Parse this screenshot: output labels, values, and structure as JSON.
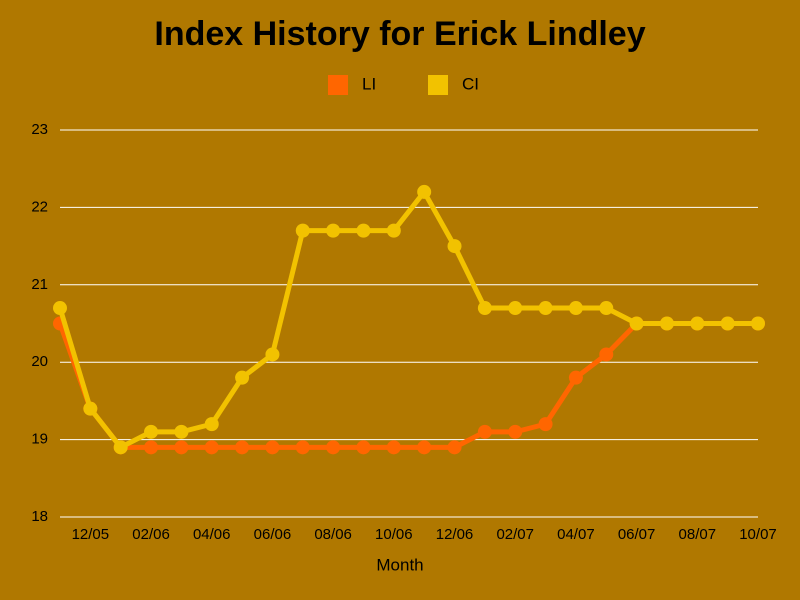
{
  "chart_data": {
    "type": "line",
    "title": "Index History for Erick Lindley",
    "x_label": "Month",
    "categories": [
      null,
      "12/05",
      null,
      "02/06",
      null,
      "04/06",
      null,
      "06/06",
      null,
      "08/06",
      null,
      "10/06",
      null,
      "12/06",
      null,
      "02/07",
      null,
      "04/07",
      null,
      "06/07",
      null,
      "08/07",
      null,
      "10/07"
    ],
    "series": [
      {
        "name": "LI",
        "color": "#ff6600",
        "values": [
          20.5,
          19.4,
          18.9,
          18.9,
          18.9,
          18.9,
          18.9,
          18.9,
          18.9,
          18.9,
          18.9,
          18.9,
          18.9,
          18.9,
          19.1,
          19.1,
          19.2,
          19.8,
          20.1,
          20.5,
          20.5,
          20.5,
          20.5,
          20.5
        ]
      },
      {
        "name": "CI",
        "color": "#f2c200",
        "values": [
          20.7,
          19.4,
          18.9,
          19.1,
          19.1,
          19.2,
          19.8,
          20.1,
          21.7,
          21.7,
          21.7,
          21.7,
          22.2,
          21.5,
          20.7,
          20.7,
          20.7,
          20.7,
          20.7,
          20.5,
          20.5,
          20.5,
          20.5,
          20.5
        ]
      }
    ],
    "ylim": [
      18,
      23
    ],
    "yticks": [
      18,
      19,
      20,
      21,
      22,
      23
    ],
    "grid": true,
    "legend": "top"
  }
}
